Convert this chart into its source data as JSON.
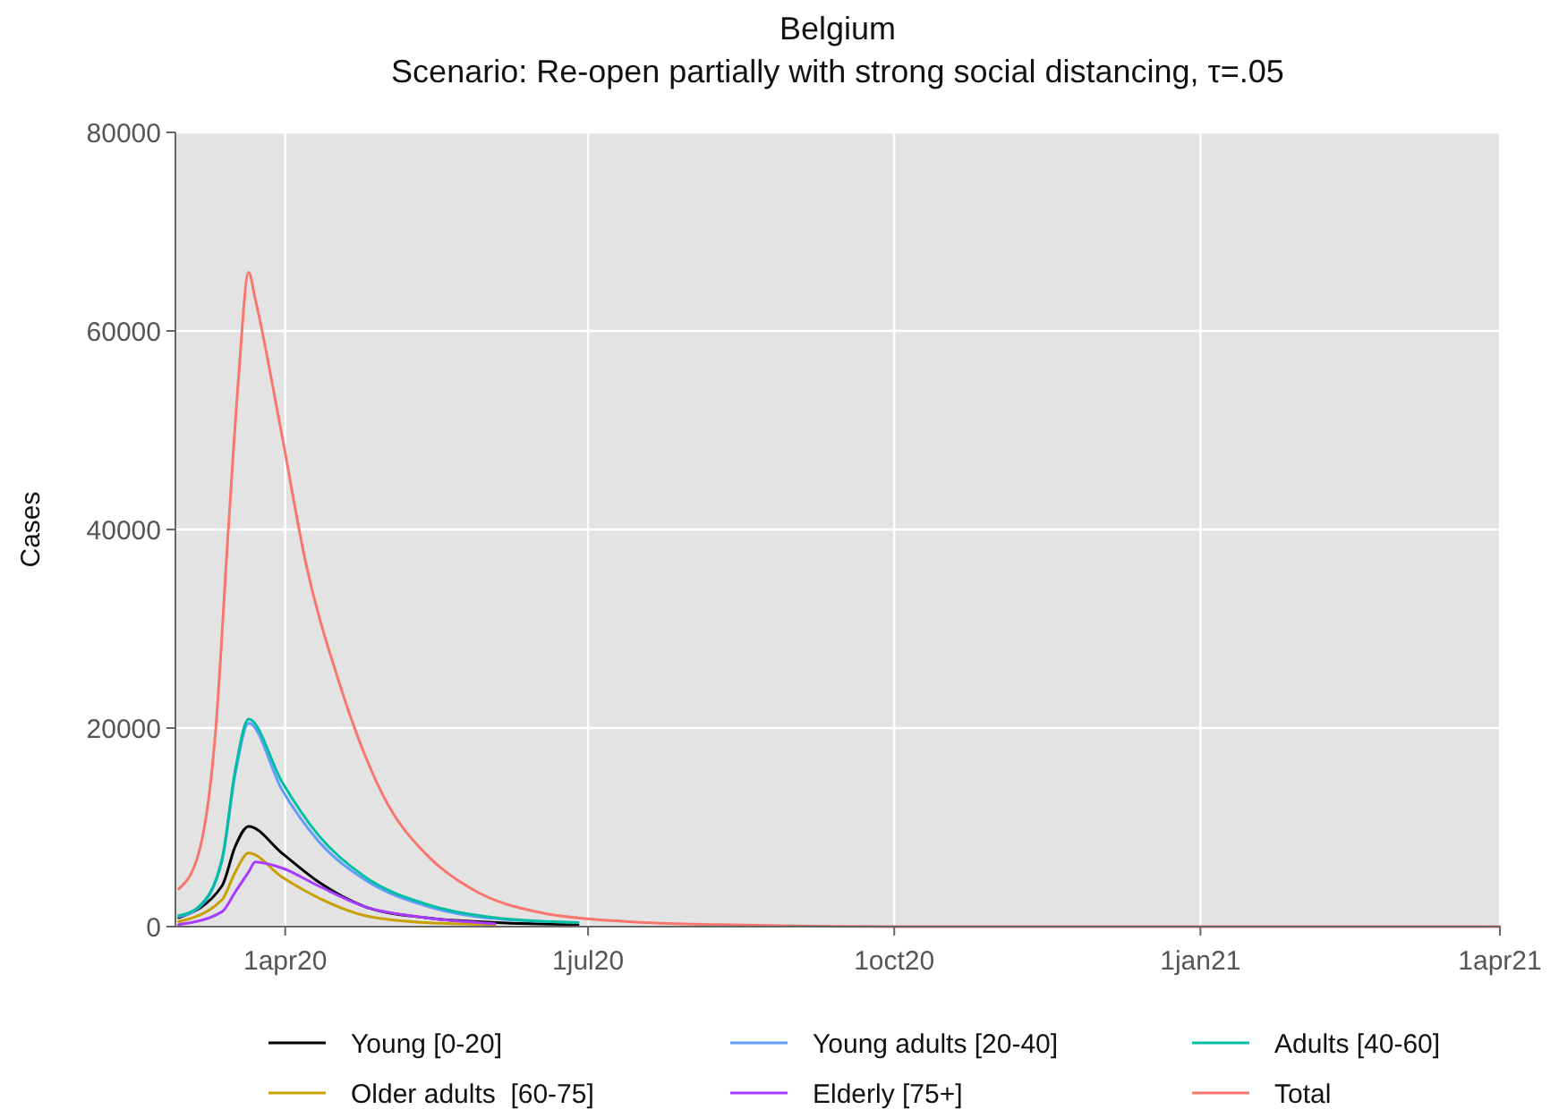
{
  "chart_data": {
    "type": "line",
    "title": "Belgium",
    "subtitle": "Scenario: Re-open partially with strong social distancing, τ=.05",
    "ylabel": "Cases",
    "xlim": [
      "2020-02-28",
      "2021-04-01"
    ],
    "ylim": [
      0,
      80000
    ],
    "xticks": [
      {
        "value": "2020-04-01",
        "label": "1apr20"
      },
      {
        "value": "2020-07-01",
        "label": "1jul20"
      },
      {
        "value": "2020-10-01",
        "label": "1oct20"
      },
      {
        "value": "2021-01-01",
        "label": "1jan21"
      },
      {
        "value": "2021-04-01",
        "label": "1apr21"
      }
    ],
    "yticks": [
      0,
      20000,
      40000,
      60000,
      80000
    ],
    "grid": true,
    "legend": "bottom",
    "line_style": "solid",
    "marker": "none",
    "series": [
      {
        "name": "Young [0-20]",
        "color": "#000000",
        "x": [
          "2020-02-29",
          "2020-03-13",
          "2020-03-17",
          "2020-03-21",
          "2020-03-31",
          "2020-04-11",
          "2020-04-25",
          "2020-05-13",
          "2020-06-03",
          "2020-06-28"
        ],
        "values": [
          900,
          4100,
          8100,
          10100,
          7400,
          4500,
          2000,
          900,
          400,
          200
        ]
      },
      {
        "name": "Young adults [20-40]",
        "color": "#619cff",
        "x": [
          "2020-02-29",
          "2020-03-06",
          "2020-03-13",
          "2020-03-17",
          "2020-03-21",
          "2020-03-31",
          "2020-04-11",
          "2020-04-25",
          "2020-05-13",
          "2020-06-03",
          "2020-06-28"
        ],
        "values": [
          1000,
          1900,
          6600,
          15400,
          20500,
          13800,
          8600,
          4700,
          2100,
          800,
          400
        ]
      },
      {
        "name": "Adults [40-60]",
        "color": "#00bfa0",
        "x": [
          "2020-02-29",
          "2020-03-06",
          "2020-03-13",
          "2020-03-17",
          "2020-03-21",
          "2020-03-31",
          "2020-04-11",
          "2020-04-25",
          "2020-05-13",
          "2020-06-03",
          "2020-06-28"
        ],
        "values": [
          1100,
          2000,
          6800,
          15800,
          20900,
          14600,
          9200,
          5000,
          2300,
          900,
          400
        ]
      },
      {
        "name": "Older adults  [60-75]",
        "color": "#c8a000",
        "x": [
          "2020-02-29",
          "2020-03-13",
          "2020-03-17",
          "2020-03-21",
          "2020-03-31",
          "2020-04-11",
          "2020-04-25",
          "2020-05-13",
          "2020-06-03"
        ],
        "values": [
          500,
          2700,
          5500,
          7400,
          5000,
          2900,
          1100,
          400,
          200
        ]
      },
      {
        "name": "Elderly [75+]",
        "color": "#a83cff",
        "x": [
          "2020-02-29",
          "2020-03-13",
          "2020-03-17",
          "2020-03-21",
          "2020-03-23",
          "2020-03-31",
          "2020-04-11",
          "2020-04-25",
          "2020-05-13",
          "2020-06-03"
        ],
        "values": [
          200,
          1500,
          3500,
          5500,
          6500,
          5900,
          4100,
          2000,
          900,
          300
        ]
      },
      {
        "name": "Total",
        "color": "#f8766d",
        "x": [
          "2020-02-29",
          "2020-03-06",
          "2020-03-11",
          "2020-03-15",
          "2020-03-18",
          "2020-03-21",
          "2020-03-23",
          "2020-03-31",
          "2020-04-07",
          "2020-04-17",
          "2020-05-02",
          "2020-05-13",
          "2020-05-27",
          "2020-06-17",
          "2020-07-13",
          "2020-08-09",
          "2020-10-02",
          "2021-04-01"
        ],
        "values": [
          3800,
          7400,
          19400,
          40500,
          55400,
          65900,
          63200,
          49500,
          36900,
          24800,
          12200,
          7400,
          3800,
          1400,
          500,
          200,
          0,
          0
        ]
      }
    ]
  }
}
